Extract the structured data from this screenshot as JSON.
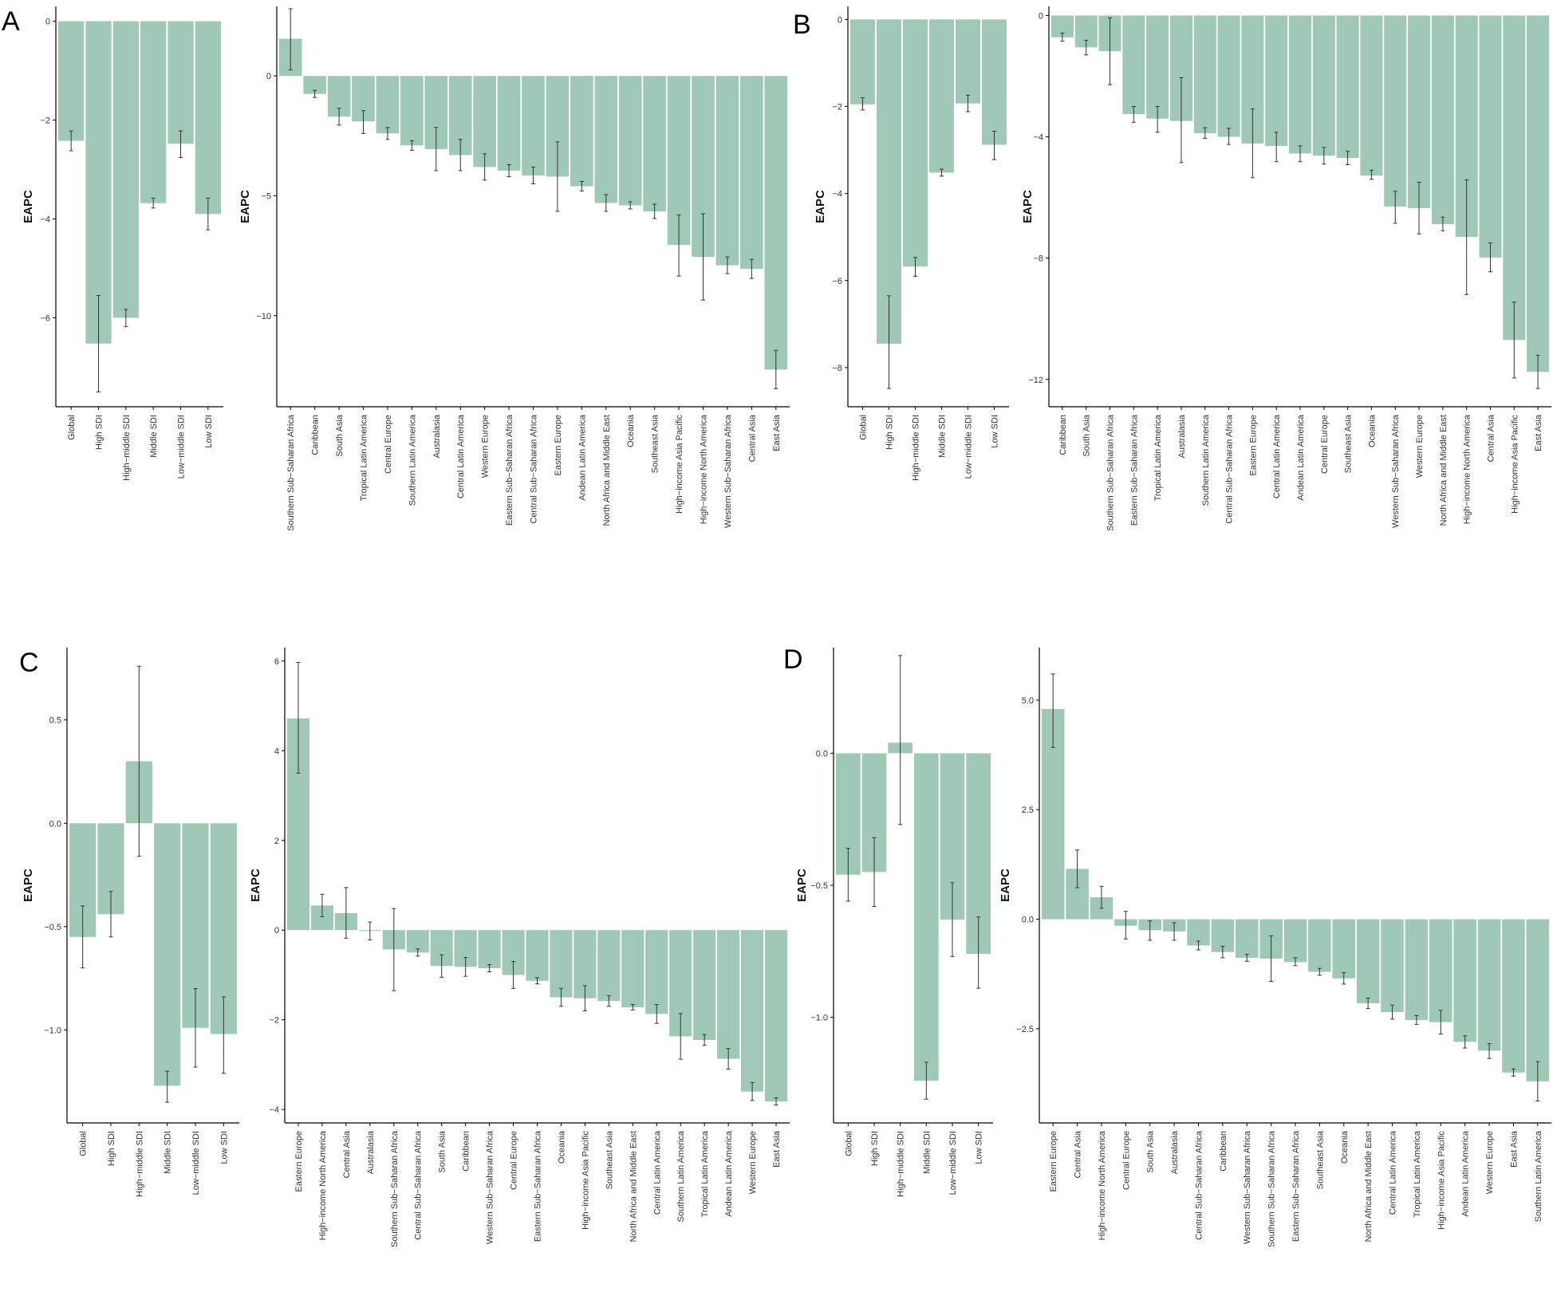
{
  "style": {
    "bar_color": "#9fc9b6",
    "axis_color": "#000000",
    "error_color": "#333333"
  },
  "panels": [
    {
      "label": "A"
    },
    {
      "label": "B"
    },
    {
      "label": "C"
    },
    {
      "label": "D"
    }
  ],
  "chart_data": [
    {
      "panel": "A",
      "type": "bar",
      "ylabel": "EAPC",
      "ylim": [
        -7.8,
        0.3
      ],
      "yticks": [
        {
          "v": 0,
          "t": "0"
        },
        {
          "v": -2,
          "t": "-2"
        },
        {
          "v": -4,
          "t": "-4"
        },
        {
          "v": -6,
          "t": "-6"
        }
      ],
      "categories": [
        "Global",
        "High SDI",
        "High-middle SDI",
        "Middle SDI",
        "Low-middle SDI",
        "Low SDI"
      ],
      "values": [
        -2.42,
        -6.52,
        -6.0,
        -3.68,
        -2.48,
        -3.9
      ],
      "error_low": [
        -2.62,
        -7.5,
        -6.18,
        -3.78,
        -2.76,
        -4.22
      ],
      "error_high": [
        -2.22,
        -5.55,
        -5.83,
        -3.58,
        -2.22,
        -3.58
      ]
    },
    {
      "panel": "A",
      "type": "bar",
      "ylabel": "EAPC",
      "ylim": [
        -13.8,
        2.9
      ],
      "yticks": [
        {
          "v": 0,
          "t": "0"
        },
        {
          "v": -5,
          "t": "-5"
        },
        {
          "v": -10,
          "t": "-10"
        }
      ],
      "categories": [
        "Southern Sub-Saharan Africa",
        "Caribbean",
        "South Asia",
        "Tropical Latin America",
        "Central Europe",
        "Southern Latin America",
        "Australasia",
        "Central Latin America",
        "Western Europe",
        "Eastern Sub-Saharan Africa",
        "Central Sub-Saharan Africa",
        "Eastern Europe",
        "Andean Latin America",
        "North Africa and Middle East",
        "Oceania",
        "Southeast Asia",
        "High-income Asia Pacific",
        "High-income North America",
        "Western Sub-Saharan Africa",
        "Central Asia",
        "East Asia"
      ],
      "values": [
        1.55,
        -0.75,
        -1.7,
        -1.9,
        -2.4,
        -2.9,
        -3.05,
        -3.3,
        -3.8,
        -3.95,
        -4.15,
        -4.2,
        -4.6,
        -5.3,
        -5.4,
        -5.65,
        -7.05,
        -7.55,
        -7.9,
        -8.05,
        -12.25
      ],
      "error_low": [
        0.25,
        -0.9,
        -2.05,
        -2.4,
        -2.65,
        -3.1,
        -3.95,
        -3.95,
        -4.35,
        -4.2,
        -4.5,
        -5.65,
        -4.8,
        -5.65,
        -5.55,
        -5.95,
        -8.35,
        -9.35,
        -8.25,
        -8.45,
        -13.05
      ],
      "error_high": [
        2.8,
        -0.6,
        -1.35,
        -1.45,
        -2.15,
        -2.7,
        -2.15,
        -2.65,
        -3.25,
        -3.7,
        -3.8,
        -2.75,
        -4.4,
        -4.95,
        -5.25,
        -5.35,
        -5.8,
        -5.75,
        -7.55,
        -7.65,
        -11.45
      ]
    },
    {
      "panel": "B",
      "type": "bar",
      "ylabel": "EAPC",
      "ylim": [
        -8.9,
        0.3
      ],
      "yticks": [
        {
          "v": 0,
          "t": "0"
        },
        {
          "v": -2,
          "t": "-2"
        },
        {
          "v": -4,
          "t": "-4"
        },
        {
          "v": -6,
          "t": "-6"
        },
        {
          "v": -8,
          "t": "-8"
        }
      ],
      "categories": [
        "Global",
        "High SDI",
        "High-middle SDI",
        "Middle SDI",
        "Low-middle SDI",
        "Low SDI"
      ],
      "values": [
        -1.95,
        -7.45,
        -5.68,
        -3.52,
        -1.93,
        -2.88
      ],
      "error_low": [
        -2.08,
        -8.48,
        -5.9,
        -3.6,
        -2.12,
        -3.22
      ],
      "error_high": [
        -1.8,
        -6.35,
        -5.47,
        -3.44,
        -1.74,
        -2.57
      ]
    },
    {
      "panel": "B",
      "type": "bar",
      "ylabel": "EAPC",
      "ylim": [
        -12.9,
        0.3
      ],
      "yticks": [
        {
          "v": 0,
          "t": "0"
        },
        {
          "v": -4,
          "t": "-4"
        },
        {
          "v": -8,
          "t": "-8"
        },
        {
          "v": -12,
          "t": "-12"
        }
      ],
      "categories": [
        "Caribbean",
        "South Asia",
        "Southern Sub-Saharan Africa",
        "Eastern Sub-Saharan Africa",
        "Tropical Latin America",
        "Australasia",
        "Southern Latin America",
        "Central Sub-Saharan Africa",
        "Eastern Europe",
        "Central Latin America",
        "Andean Latin America",
        "Central Europe",
        "Southeast Asia",
        "Oceania",
        "Western Sub-Saharan Africa",
        "Western Europe",
        "North Africa and Middle East",
        "High-income North America",
        "Central Asia",
        "High-income Asia Pacific",
        "East Asia"
      ],
      "values": [
        -0.72,
        -1.05,
        -1.18,
        -3.25,
        -3.4,
        -3.48,
        -3.88,
        -4.0,
        -4.22,
        -4.3,
        -4.55,
        -4.62,
        -4.7,
        -5.28,
        -6.3,
        -6.35,
        -6.88,
        -7.3,
        -7.98,
        -10.7,
        -11.75
      ],
      "error_low": [
        -0.85,
        -1.3,
        -2.28,
        -3.52,
        -3.85,
        -4.85,
        -4.05,
        -4.25,
        -5.35,
        -4.82,
        -4.82,
        -4.9,
        -4.92,
        -5.4,
        -6.85,
        -7.2,
        -7.1,
        -9.2,
        -8.45,
        -11.95,
        -12.3
      ],
      "error_high": [
        -0.58,
        -0.82,
        -0.08,
        -3.0,
        -3.0,
        -2.05,
        -3.7,
        -3.72,
        -3.08,
        -3.85,
        -4.3,
        -4.35,
        -4.48,
        -5.1,
        -5.8,
        -5.5,
        -6.65,
        -5.42,
        -7.5,
        -9.45,
        -11.2
      ]
    },
    {
      "panel": "C",
      "type": "bar",
      "ylabel": "EAPC",
      "ylim": [
        -1.45,
        0.85
      ],
      "yticks": [
        {
          "v": 0.5,
          "t": "0.5"
        },
        {
          "v": 0,
          "t": "0.0"
        },
        {
          "v": -0.5,
          "t": "-0.5"
        },
        {
          "v": -1,
          "t": "-1.0"
        }
      ],
      "categories": [
        "Global",
        "High SDI",
        "High-middle SDI",
        "Middle SDI",
        "Low-middle SDI",
        "Low SDI"
      ],
      "values": [
        -0.55,
        -0.44,
        0.3,
        -1.27,
        -0.99,
        -1.02
      ],
      "error_low": [
        -0.7,
        -0.55,
        -0.16,
        -1.35,
        -1.18,
        -1.21
      ],
      "error_high": [
        -0.4,
        -0.33,
        0.76,
        -1.2,
        -0.8,
        -0.84
      ]
    },
    {
      "panel": "C",
      "type": "bar",
      "ylabel": "EAPC",
      "ylim": [
        -4.3,
        6.3
      ],
      "yticks": [
        {
          "v": 6,
          "t": "6"
        },
        {
          "v": 4,
          "t": "4"
        },
        {
          "v": 2,
          "t": "2"
        },
        {
          "v": 0,
          "t": "0"
        },
        {
          "v": -2,
          "t": "-2"
        },
        {
          "v": -4,
          "t": "-4"
        }
      ],
      "categories": [
        "Eastern Europe",
        "High-income North America",
        "Central Asia",
        "Australasia",
        "Southern Sub-Saharan Africa",
        "Central Sub-Saharan Africa",
        "South Asia",
        "Caribbean",
        "Western Sub-Saharan Africa",
        "Central Europe",
        "Eastern Sub-Saharan Africa",
        "Oceania",
        "High-income Asia Pacific",
        "Southeast Asia",
        "North Africa and Middle East",
        "Central Latin America",
        "Southern Latin America",
        "Tropical Latin America",
        "Andean Latin America",
        "Western Europe",
        "East Asia"
      ],
      "values": [
        4.72,
        0.55,
        0.38,
        -0.02,
        -0.43,
        -0.5,
        -0.8,
        -0.82,
        -0.85,
        -1.0,
        -1.13,
        -1.5,
        -1.52,
        -1.58,
        -1.72,
        -1.87,
        -2.37,
        -2.45,
        -2.87,
        -3.6,
        -3.82
      ],
      "error_low": [
        3.5,
        0.3,
        -0.18,
        -0.22,
        -1.35,
        -0.58,
        -1.05,
        -1.03,
        -0.93,
        -1.3,
        -1.2,
        -1.7,
        -1.8,
        -1.7,
        -1.78,
        -2.08,
        -2.88,
        -2.57,
        -3.1,
        -3.8,
        -3.9
      ],
      "error_high": [
        5.97,
        0.8,
        0.95,
        0.18,
        0.48,
        -0.42,
        -0.55,
        -0.61,
        -0.77,
        -0.7,
        -1.06,
        -1.3,
        -1.24,
        -1.46,
        -1.66,
        -1.66,
        -1.86,
        -2.33,
        -2.64,
        -3.4,
        -3.74
      ]
    },
    {
      "panel": "D",
      "type": "bar",
      "ylabel": "EAPC",
      "ylim": [
        -1.4,
        0.4
      ],
      "yticks": [
        {
          "v": 0,
          "t": "0.0"
        },
        {
          "v": -0.5,
          "t": "-0.5"
        },
        {
          "v": -1,
          "t": "-1.0"
        }
      ],
      "categories": [
        "Global",
        "High SDI",
        "High-middle SDI",
        "Middle SDI",
        "Low-middle SDI",
        "Low SDI"
      ],
      "values": [
        -0.46,
        -0.45,
        0.04,
        -1.24,
        -0.63,
        -0.76
      ],
      "error_low": [
        -0.56,
        -0.58,
        -0.27,
        -1.31,
        -0.77,
        -0.89
      ],
      "error_high": [
        -0.36,
        -0.32,
        0.37,
        -1.17,
        -0.49,
        -0.62
      ]
    },
    {
      "panel": "D",
      "type": "bar",
      "ylabel": "EAPC",
      "ylim": [
        -4.65,
        6.2
      ],
      "yticks": [
        {
          "v": 5,
          "t": "5.0"
        },
        {
          "v": 2.5,
          "t": "2.5"
        },
        {
          "v": 0,
          "t": "0.0"
        },
        {
          "v": -2.5,
          "t": "-2.5"
        }
      ],
      "categories": [
        "Eastern Europe",
        "Central Asia",
        "High-income North America",
        "Central Europe",
        "South Asia",
        "Australasia",
        "Central Sub-Saharan Africa",
        "Caribbean",
        "Western Sub-Saharan Africa",
        "Southern Sub-Saharan Africa",
        "Eastern Sub-Saharan Africa",
        "Southeast Asia",
        "Oceania",
        "North Africa and Middle East",
        "Central Latin America",
        "Tropical Latin America",
        "High-income Asia Pacific",
        "Andean Latin America",
        "Western Europe",
        "East Asia",
        "Southern Latin America"
      ],
      "values": [
        4.8,
        1.15,
        0.5,
        -0.15,
        -0.25,
        -0.28,
        -0.6,
        -0.75,
        -0.88,
        -0.9,
        -0.98,
        -1.2,
        -1.35,
        -1.92,
        -2.12,
        -2.3,
        -2.35,
        -2.8,
        -3.0,
        -3.5,
        -3.7
      ],
      "error_low": [
        3.92,
        0.72,
        0.25,
        -0.45,
        -0.48,
        -0.48,
        -0.7,
        -0.88,
        -0.96,
        -1.42,
        -1.06,
        -1.28,
        -1.48,
        -2.04,
        -2.28,
        -2.4,
        -2.62,
        -2.94,
        -3.18,
        -3.58,
        -4.15
      ],
      "error_high": [
        5.6,
        1.58,
        0.75,
        0.18,
        -0.04,
        -0.08,
        -0.5,
        -0.62,
        -0.8,
        -0.38,
        -0.88,
        -1.12,
        -1.22,
        -1.8,
        -1.96,
        -2.2,
        -2.08,
        -2.66,
        -2.84,
        -3.42,
        -3.25
      ]
    }
  ]
}
